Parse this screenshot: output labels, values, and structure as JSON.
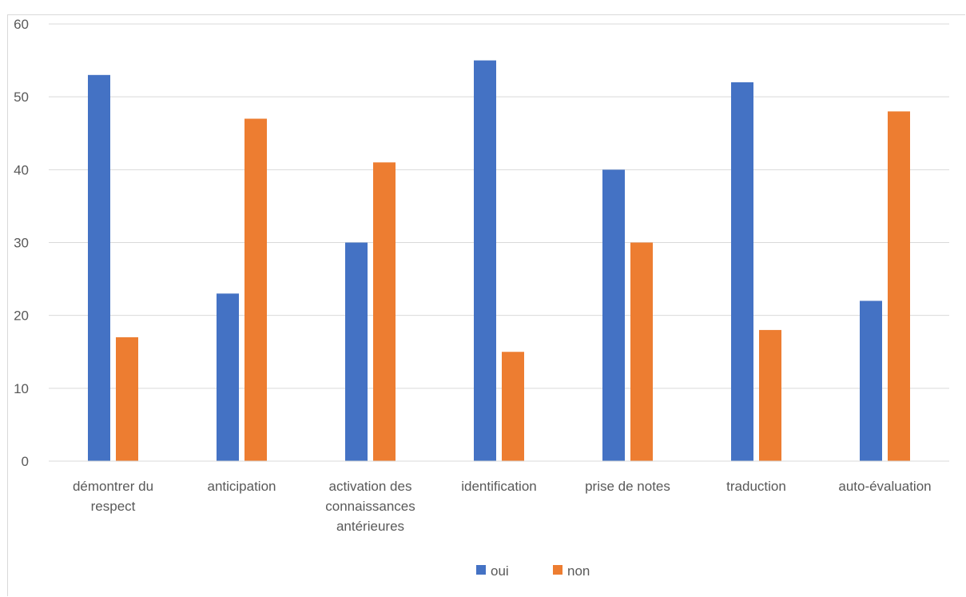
{
  "chart_data": {
    "type": "bar",
    "categories": [
      [
        "démontrer du",
        "respect"
      ],
      [
        "anticipation"
      ],
      [
        "activation des",
        "connaissances",
        "antérieures"
      ],
      [
        "identification"
      ],
      [
        "prise de notes"
      ],
      [
        "traduction"
      ],
      [
        "auto-évaluation"
      ]
    ],
    "series": [
      {
        "name": "oui",
        "color": "#4472C4",
        "values": [
          53,
          23,
          30,
          55,
          40,
          52,
          22
        ]
      },
      {
        "name": "non",
        "color": "#ED7D31",
        "values": [
          17,
          47,
          41,
          15,
          30,
          18,
          48
        ]
      }
    ],
    "ylim": [
      0,
      60
    ],
    "yticks": [
      0,
      10,
      20,
      30,
      40,
      50,
      60
    ],
    "grid": true,
    "legend_position": "bottom",
    "title": "",
    "xlabel": "",
    "ylabel": ""
  }
}
